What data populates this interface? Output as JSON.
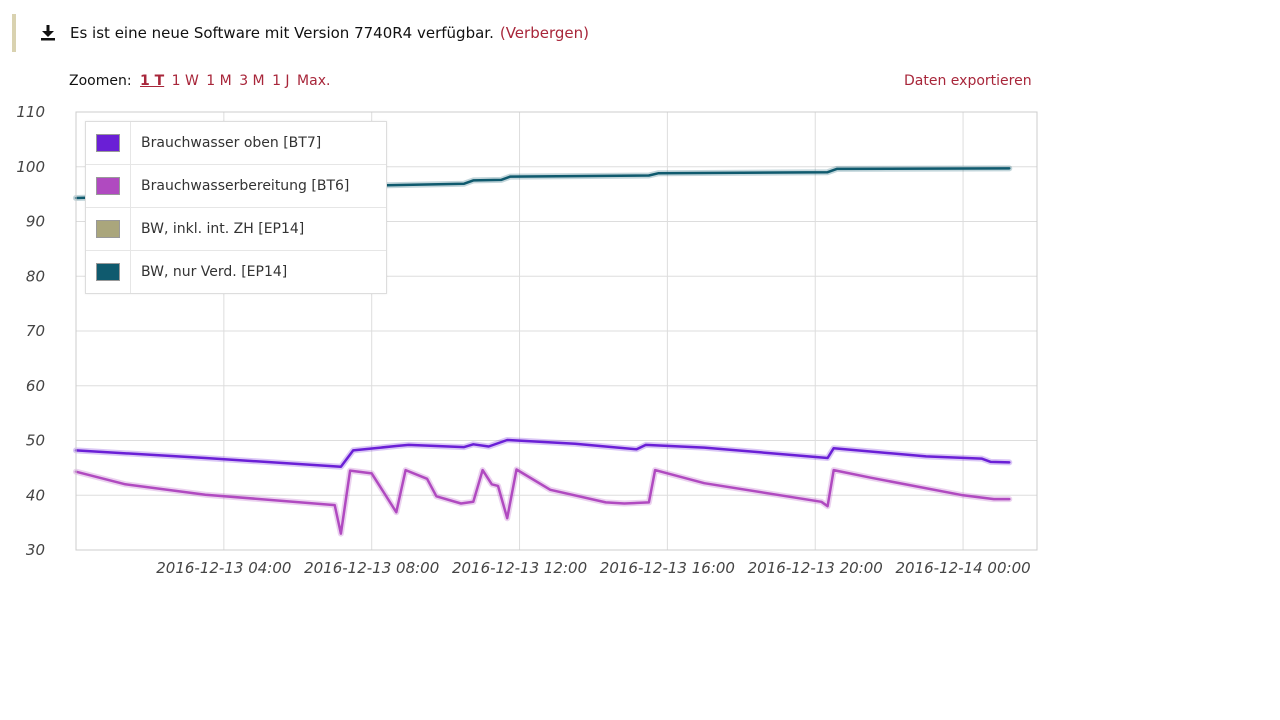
{
  "notice": {
    "icon": "download-icon",
    "message": "Es ist eine neue Software mit Version 7740R4 verfügbar.",
    "hide_link": "(Verbergen)"
  },
  "toolbar": {
    "zoom_label": "Zoomen:",
    "zoom_options": [
      "1 T",
      "1 W",
      "1 M",
      "3 M",
      "1 J",
      "Max."
    ],
    "active_zoom": "1 T",
    "export_label": "Daten exportieren"
  },
  "colors": {
    "link": "#a8263a",
    "series_bt7": "#6a1fd6",
    "series_bt6": "#b04ac0",
    "series_ep14_zh": "#aaa67c",
    "series_ep14_verd": "#0f5a6e"
  },
  "chart_data": {
    "type": "line",
    "title": "",
    "xlabel": "",
    "ylabel": "",
    "ylim": [
      30,
      110
    ],
    "y_ticks": [
      30,
      40,
      50,
      60,
      70,
      80,
      90,
      100,
      110
    ],
    "xlim": [
      "2016-12-13 00:00",
      "2016-12-14 02:00"
    ],
    "x_ticks": [
      "2016-12-13 04:00",
      "2016-12-13 08:00",
      "2016-12-13 12:00",
      "2016-12-13 16:00",
      "2016-12-13 20:00",
      "2016-12-14 00:00"
    ],
    "grid": true,
    "legend_position": "top-left",
    "series": [
      {
        "name": "Brauchwasser oben [BT7]",
        "color": "#6a1fd6",
        "points": [
          [
            "2016-12-13 00:00",
            48.2
          ],
          [
            "2016-12-13 03:30",
            46.8
          ],
          [
            "2016-12-13 07:10",
            45.2
          ],
          [
            "2016-12-13 07:30",
            48.2
          ],
          [
            "2016-12-13 08:40",
            49.0
          ],
          [
            "2016-12-13 09:00",
            49.2
          ],
          [
            "2016-12-13 10:30",
            48.8
          ],
          [
            "2016-12-13 10:45",
            49.3
          ],
          [
            "2016-12-13 11:10",
            48.9
          ],
          [
            "2016-12-13 11:40",
            50.1
          ],
          [
            "2016-12-13 13:30",
            49.4
          ],
          [
            "2016-12-13 15:10",
            48.4
          ],
          [
            "2016-12-13 15:25",
            49.2
          ],
          [
            "2016-12-13 17:00",
            48.7
          ],
          [
            "2016-12-13 20:20",
            46.8
          ],
          [
            "2016-12-13 20:30",
            48.6
          ],
          [
            "2016-12-13 23:00",
            47.1
          ],
          [
            "2016-12-14 00:30",
            46.7
          ],
          [
            "2016-12-14 00:45",
            46.1
          ],
          [
            "2016-12-14 01:15",
            46.0
          ]
        ]
      },
      {
        "name": "Brauchwasserbereitung [BT6]",
        "color": "#b04ac0",
        "points": [
          [
            "2016-12-13 00:00",
            44.3
          ],
          [
            "2016-12-13 01:20",
            42.0
          ],
          [
            "2016-12-13 03:30",
            40.1
          ],
          [
            "2016-12-13 07:00",
            38.2
          ],
          [
            "2016-12-13 07:10",
            33.0
          ],
          [
            "2016-12-13 07:25",
            44.5
          ],
          [
            "2016-12-13 08:00",
            44.0
          ],
          [
            "2016-12-13 08:40",
            36.9
          ],
          [
            "2016-12-13 08:55",
            44.6
          ],
          [
            "2016-12-13 09:30",
            43.0
          ],
          [
            "2016-12-13 09:45",
            39.8
          ],
          [
            "2016-12-13 10:25",
            38.5
          ],
          [
            "2016-12-13 10:45",
            38.8
          ],
          [
            "2016-12-13 11:00",
            44.6
          ],
          [
            "2016-12-13 11:15",
            42.0
          ],
          [
            "2016-12-13 11:25",
            41.7
          ],
          [
            "2016-12-13 11:40",
            35.8
          ],
          [
            "2016-12-13 11:55",
            44.7
          ],
          [
            "2016-12-13 12:50",
            41.0
          ],
          [
            "2016-12-13 14:20",
            38.7
          ],
          [
            "2016-12-13 14:50",
            38.5
          ],
          [
            "2016-12-13 15:30",
            38.7
          ],
          [
            "2016-12-13 15:40",
            44.6
          ],
          [
            "2016-12-13 17:00",
            42.2
          ],
          [
            "2016-12-13 20:10",
            38.8
          ],
          [
            "2016-12-13 20:20",
            38.0
          ],
          [
            "2016-12-13 20:30",
            44.6
          ],
          [
            "2016-12-13 21:30",
            43.2
          ],
          [
            "2016-12-14 00:00",
            40.0
          ],
          [
            "2016-12-14 00:50",
            39.3
          ],
          [
            "2016-12-14 01:15",
            39.3
          ]
        ]
      },
      {
        "name": "BW, inkl. int. ZH [EP14]",
        "color": "#aaa67c",
        "points": []
      },
      {
        "name": "BW, nur Verd. [EP14]",
        "color": "#0f5a6e",
        "points": [
          [
            "2016-12-13 00:00",
            94.3
          ],
          [
            "2016-12-13 02:00",
            94.6
          ],
          [
            "2016-12-13 04:30",
            95.2
          ],
          [
            "2016-12-13 07:15",
            96.0
          ],
          [
            "2016-12-13 07:30",
            96.5
          ],
          [
            "2016-12-13 10:30",
            96.9
          ],
          [
            "2016-12-13 10:45",
            97.5
          ],
          [
            "2016-12-13 11:30",
            97.6
          ],
          [
            "2016-12-13 11:45",
            98.2
          ],
          [
            "2016-12-13 15:30",
            98.4
          ],
          [
            "2016-12-13 15:45",
            98.8
          ],
          [
            "2016-12-13 20:20",
            99.0
          ],
          [
            "2016-12-13 20:35",
            99.6
          ],
          [
            "2016-12-14 01:15",
            99.7
          ]
        ]
      }
    ]
  }
}
